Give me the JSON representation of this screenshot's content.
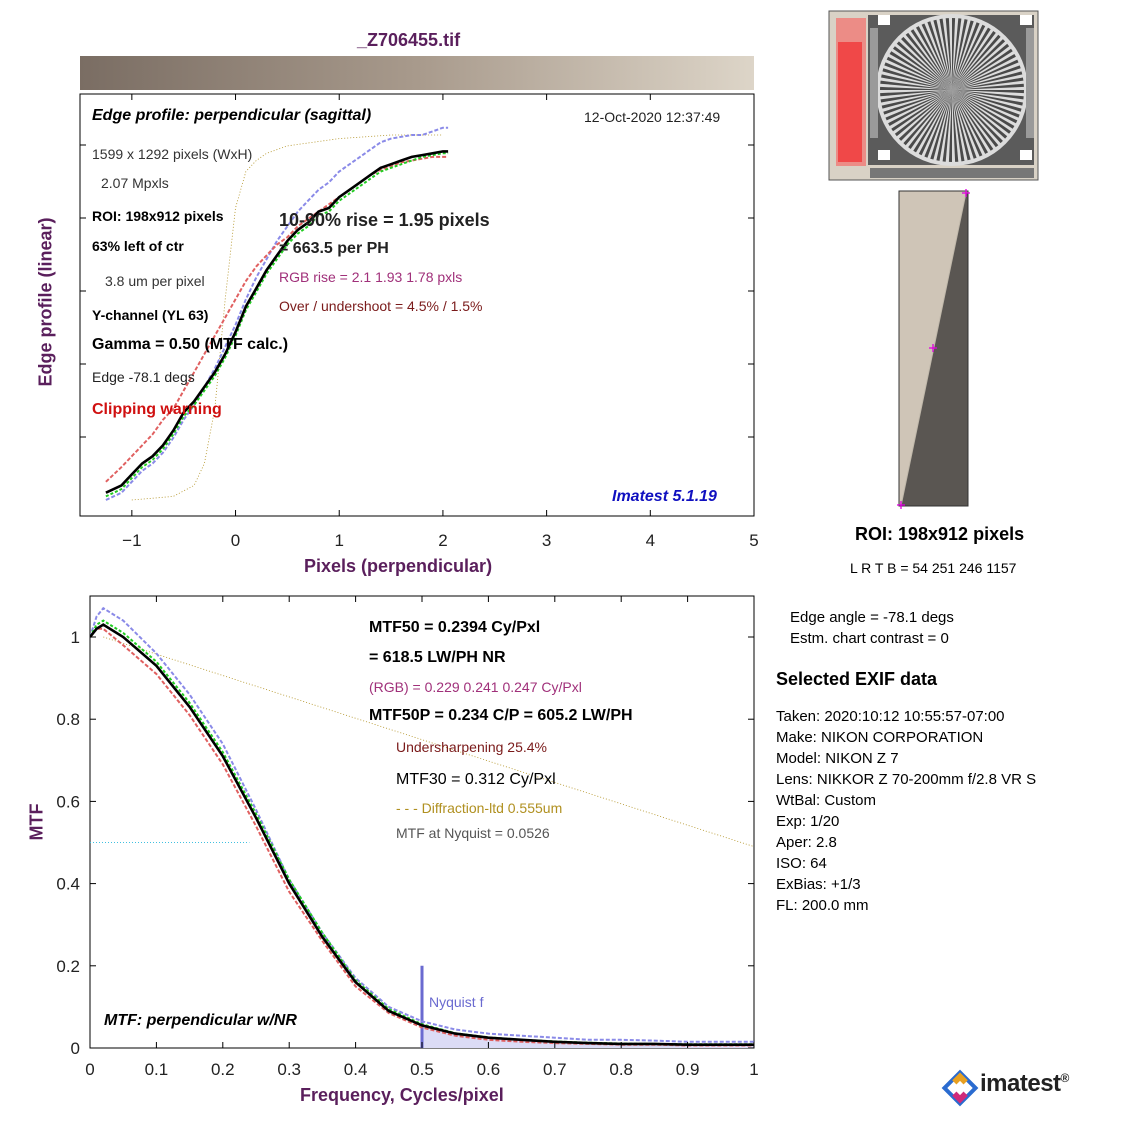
{
  "file_title": "_Z706455.tif",
  "edge_panel": {
    "title": "Edge profile: perpendicular (sagittal)",
    "timestamp": "12-Oct-2020 12:37:49",
    "image_size": "1599 x 1292 pixels (WxH)",
    "mpxls": "2.07 Mpxls",
    "roi": "ROI:  198x912 pixels",
    "position": "63% left of ctr",
    "pixel_pitch": "3.8 um per pixel",
    "channel": "Y-channel  (YL 63)",
    "gamma": "Gamma = 0.50 (MTF calc.)",
    "edge_angle": "Edge  -78.1 degs",
    "clipping": "Clipping warning",
    "rise": "10-90% rise = 1.95 pixels",
    "per_ph": "=  663.5 per PH",
    "rgb_rise": "RGB rise =    2.1    1.93    1.78 pxls",
    "overshoot": "Over / undershoot =  4.5% /  1.5%",
    "version": "Imatest 5.1.19",
    "xlabel": "Pixels (perpendicular)",
    "ylabel": "Edge profile (linear)"
  },
  "mtf_panel": {
    "mtf50": "MTF50 = 0.2394 Cy/Pxl",
    "lwph": "= 618.5 LW/PH  NR",
    "rgb": "(RGB) = 0.229  0.241  0.247 Cy/Pxl",
    "mtf50p": "MTF50P = 0.234 C/P = 605.2 LW/PH",
    "undersharp": "Undersharpening 25.4%",
    "mtf30": "MTF30 = 0.312 Cy/Pxl",
    "diffraction": "- - - Diffraction-ltd  0.555um",
    "nyquist_mtf": "MTF at Nyquist = 0.0526",
    "nyquist_label": "Nyquist f",
    "footer": "MTF: perpendicular w/NR",
    "xlabel": "Frequency, Cycles/pixel",
    "ylabel": "MTF"
  },
  "roi_info": {
    "title": "ROI:  198x912 pixels",
    "lrtb": "L R  T B = 54 251  246 1157",
    "edge_angle": "Edge angle = -78.1 degs",
    "contrast": "Estm. chart contrast = 0"
  },
  "exif": {
    "heading": "Selected EXIF data",
    "lines": [
      "Taken: 2020:10:12 10:55:57-07:00",
      "Make:  NIKON CORPORATION",
      "Model:  NIKON Z 7",
      "Lens:   NIKKOR Z 70-200mm f/2.8 VR S",
      "WtBal: Custom",
      "Exp:    1/20",
      "Aper:   2.8",
      "ISO:    64",
      "ExBias: +1/3",
      "FL:     200.0 mm"
    ]
  },
  "logo": {
    "text": "imatest",
    "mark": "®"
  },
  "colors": {
    "title": "#5a1f5c",
    "main_curve": "#000000",
    "red_channel": "#e06060",
    "green_channel": "#22cc22",
    "blue_channel": "#8a8ae8",
    "annot_purple": "#a0307a",
    "annot_dark_red": "#7a1a1a",
    "clipping": "#d01010",
    "version": "#1010c0",
    "diffraction": "#b09020",
    "nyquist": "#6a6ad0"
  },
  "chart_data": [
    {
      "type": "line",
      "title": "Edge profile: perpendicular (sagittal)",
      "xlabel": "Pixels (perpendicular)",
      "ylabel": "Edge profile (linear)",
      "xlim": [
        -1.5,
        5
      ],
      "xticks": [
        -1,
        0,
        1,
        2,
        3,
        4,
        5
      ],
      "grid": false,
      "series": [
        {
          "name": "Y",
          "x": [
            -1.25,
            -1.1,
            -1.0,
            -0.9,
            -0.8,
            -0.7,
            -0.6,
            -0.5,
            -0.4,
            -0.3,
            -0.2,
            -0.1,
            0.0,
            0.1,
            0.2,
            0.3,
            0.4,
            0.5,
            0.6,
            0.7,
            0.8,
            0.9,
            1.0,
            1.1,
            1.2,
            1.3,
            1.4,
            1.5,
            1.6,
            1.7,
            1.8,
            1.9,
            2.0,
            2.05
          ],
          "y": [
            0.02,
            0.04,
            0.07,
            0.1,
            0.12,
            0.15,
            0.19,
            0.24,
            0.27,
            0.31,
            0.35,
            0.4,
            0.46,
            0.53,
            0.58,
            0.63,
            0.67,
            0.71,
            0.74,
            0.76,
            0.79,
            0.8,
            0.83,
            0.85,
            0.87,
            0.89,
            0.91,
            0.92,
            0.93,
            0.94,
            0.945,
            0.95,
            0.955,
            0.955
          ]
        },
        {
          "name": "R",
          "x": [
            -1.25,
            -1.1,
            -1.0,
            -0.9,
            -0.8,
            -0.7,
            -0.6,
            -0.5,
            -0.4,
            -0.3,
            -0.2,
            -0.1,
            0.0,
            0.1,
            0.2,
            0.3,
            0.4,
            0.5,
            0.6,
            0.7,
            0.8,
            0.9,
            1.0,
            1.1,
            1.2,
            1.3,
            1.4,
            1.5,
            1.6,
            1.7,
            1.8,
            1.9,
            2.0,
            2.05
          ],
          "y": [
            0.05,
            0.09,
            0.12,
            0.15,
            0.18,
            0.22,
            0.25,
            0.3,
            0.35,
            0.4,
            0.45,
            0.5,
            0.55,
            0.6,
            0.64,
            0.67,
            0.7,
            0.72,
            0.75,
            0.77,
            0.79,
            0.81,
            0.83,
            0.85,
            0.87,
            0.89,
            0.905,
            0.915,
            0.925,
            0.93,
            0.935,
            0.94,
            0.94,
            0.94
          ]
        },
        {
          "name": "G",
          "x": [
            -1.25,
            -1.1,
            -1.0,
            -0.9,
            -0.8,
            -0.7,
            -0.6,
            -0.5,
            -0.4,
            -0.3,
            -0.2,
            -0.1,
            0.0,
            0.1,
            0.2,
            0.3,
            0.4,
            0.5,
            0.6,
            0.7,
            0.8,
            0.9,
            1.0,
            1.1,
            1.2,
            1.3,
            1.4,
            1.5,
            1.6,
            1.7,
            1.8,
            1.9,
            2.0,
            2.05
          ],
          "y": [
            0.01,
            0.03,
            0.06,
            0.09,
            0.11,
            0.14,
            0.18,
            0.23,
            0.26,
            0.3,
            0.34,
            0.39,
            0.45,
            0.52,
            0.57,
            0.62,
            0.66,
            0.7,
            0.73,
            0.75,
            0.78,
            0.79,
            0.82,
            0.84,
            0.86,
            0.88,
            0.9,
            0.91,
            0.92,
            0.93,
            0.94,
            0.945,
            0.95,
            0.95
          ]
        },
        {
          "name": "B",
          "x": [
            -1.25,
            -1.1,
            -1.0,
            -0.9,
            -0.8,
            -0.7,
            -0.6,
            -0.5,
            -0.4,
            -0.3,
            -0.2,
            -0.1,
            0.0,
            0.1,
            0.2,
            0.3,
            0.4,
            0.5,
            0.6,
            0.7,
            0.8,
            0.9,
            1.0,
            1.1,
            1.2,
            1.3,
            1.4,
            1.5,
            1.6,
            1.7,
            1.8,
            1.9,
            2.0,
            2.05
          ],
          "y": [
            0.0,
            0.02,
            0.05,
            0.08,
            0.1,
            0.13,
            0.17,
            0.22,
            0.26,
            0.31,
            0.36,
            0.42,
            0.48,
            0.55,
            0.61,
            0.66,
            0.71,
            0.75,
            0.79,
            0.82,
            0.85,
            0.87,
            0.9,
            0.92,
            0.94,
            0.96,
            0.98,
            0.99,
            0.995,
            1.0,
            1.0,
            1.01,
            1.02,
            1.02
          ]
        },
        {
          "name": "Diffraction-ltd",
          "x": [
            -1.0,
            -0.6,
            -0.4,
            -0.3,
            -0.2,
            -0.1,
            0.0,
            0.1,
            0.2,
            0.3,
            0.5,
            1.0,
            1.5,
            2.0
          ],
          "y": [
            0.0,
            0.01,
            0.04,
            0.1,
            0.25,
            0.55,
            0.8,
            0.9,
            0.93,
            0.95,
            0.97,
            0.99,
            1.0,
            1.0
          ]
        }
      ]
    },
    {
      "type": "line",
      "title": "MTF: perpendicular w/NR",
      "xlabel": "Frequency, Cycles/pixel",
      "ylabel": "MTF",
      "xlim": [
        0,
        1
      ],
      "ylim": [
        0,
        1.1
      ],
      "xticks": [
        0,
        0.1,
        0.2,
        0.3,
        0.4,
        0.5,
        0.6,
        0.7,
        0.8,
        0.9,
        1
      ],
      "yticks": [
        0,
        0.2,
        0.4,
        0.6,
        0.8,
        1
      ],
      "grid": false,
      "series": [
        {
          "name": "Y",
          "x": [
            0,
            0.01,
            0.02,
            0.05,
            0.1,
            0.15,
            0.2,
            0.25,
            0.3,
            0.35,
            0.4,
            0.45,
            0.5,
            0.55,
            0.6,
            0.65,
            0.7,
            0.75,
            0.8,
            0.85,
            0.9,
            0.95,
            1.0
          ],
          "y": [
            1.0,
            1.02,
            1.03,
            1.0,
            0.93,
            0.83,
            0.71,
            0.56,
            0.4,
            0.27,
            0.16,
            0.09,
            0.055,
            0.035,
            0.025,
            0.02,
            0.015,
            0.012,
            0.01,
            0.01,
            0.008,
            0.008,
            0.008
          ]
        },
        {
          "name": "R",
          "x": [
            0,
            0.01,
            0.02,
            0.05,
            0.1,
            0.15,
            0.2,
            0.25,
            0.3,
            0.35,
            0.4,
            0.45,
            0.5,
            0.55,
            0.6,
            0.65,
            0.7,
            0.75,
            0.8,
            0.85,
            0.9,
            0.95,
            1.0
          ],
          "y": [
            1.0,
            1.02,
            1.02,
            0.98,
            0.91,
            0.81,
            0.69,
            0.54,
            0.38,
            0.26,
            0.15,
            0.085,
            0.05,
            0.03,
            0.02,
            0.015,
            0.012,
            0.01,
            0.008,
            0.008,
            0.006,
            0.006,
            0.006
          ]
        },
        {
          "name": "G",
          "x": [
            0,
            0.01,
            0.02,
            0.05,
            0.1,
            0.15,
            0.2,
            0.25,
            0.3,
            0.35,
            0.4,
            0.45,
            0.5,
            0.55,
            0.6,
            0.65,
            0.7,
            0.75,
            0.8,
            0.85,
            0.9,
            0.95,
            1.0
          ],
          "y": [
            1.0,
            1.03,
            1.04,
            1.01,
            0.94,
            0.84,
            0.72,
            0.57,
            0.41,
            0.28,
            0.165,
            0.095,
            0.058,
            0.036,
            0.026,
            0.02,
            0.016,
            0.013,
            0.011,
            0.01,
            0.009,
            0.009,
            0.009
          ]
        },
        {
          "name": "B",
          "x": [
            0,
            0.01,
            0.02,
            0.05,
            0.1,
            0.15,
            0.2,
            0.25,
            0.3,
            0.35,
            0.4,
            0.45,
            0.5,
            0.55,
            0.6,
            0.65,
            0.7,
            0.75,
            0.8,
            0.85,
            0.9,
            0.95,
            1.0
          ],
          "y": [
            1.0,
            1.05,
            1.07,
            1.04,
            0.96,
            0.86,
            0.74,
            0.58,
            0.41,
            0.28,
            0.17,
            0.1,
            0.065,
            0.045,
            0.035,
            0.03,
            0.025,
            0.02,
            0.02,
            0.018,
            0.015,
            0.015,
            0.015
          ]
        },
        {
          "name": "Diffraction-ltd",
          "x": [
            0.02,
            1.0
          ],
          "y": [
            1.0,
            0.49
          ]
        }
      ],
      "annotations": {
        "nyquist_x": 0.5,
        "mtf50_y": 0.5
      }
    }
  ]
}
